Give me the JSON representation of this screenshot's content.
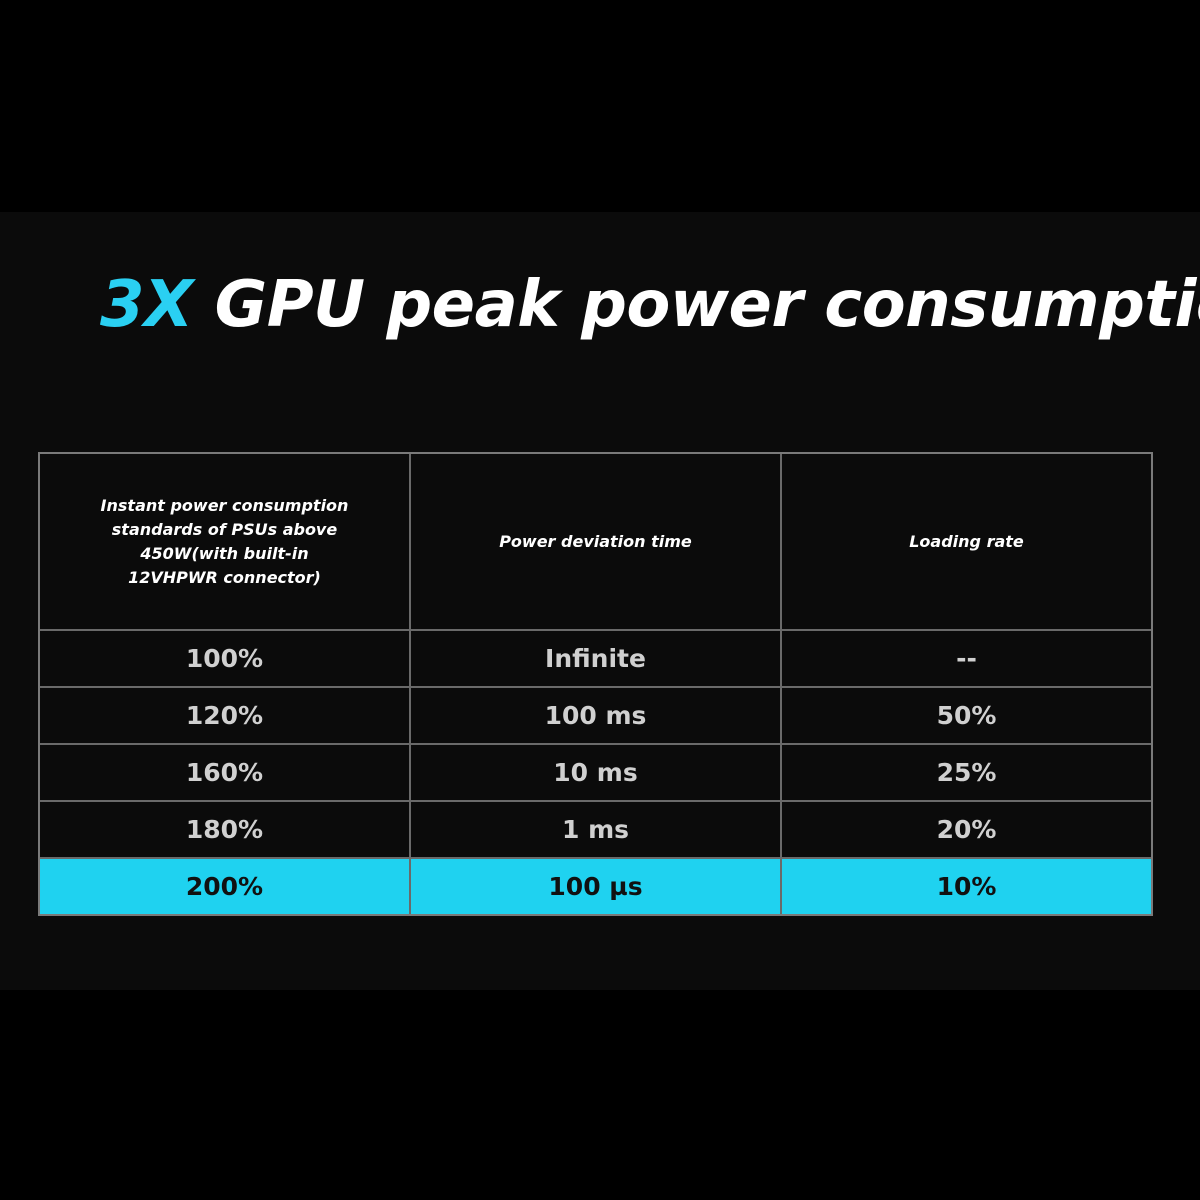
{
  "header": {
    "title_accent": "3X",
    "title": "GPU peak power consumption"
  },
  "table": {
    "columns": [
      "Instant power consumption standards of PSUs above 450W(with built-in 12VHPWR connector)",
      "Power deviation time",
      "Loading rate"
    ],
    "rows": [
      [
        "100%",
        "Infinite",
        "--"
      ],
      [
        "120%",
        "100 ms",
        "50%"
      ],
      [
        "160%",
        "10 ms",
        "25%"
      ],
      [
        "180%",
        "1 ms",
        "20%"
      ],
      [
        "200%",
        "100 µs",
        "10%"
      ]
    ],
    "highlight_row": 4
  }
}
